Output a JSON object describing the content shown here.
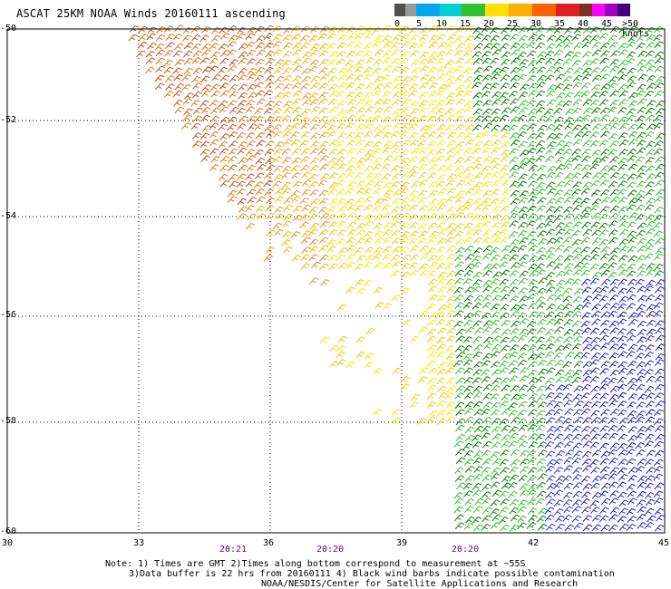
{
  "title": "ASCAT 25KM NOAA Winds 20160111 ascending",
  "colorbar": {
    "labels": [
      "0",
      "5",
      "10",
      "15",
      "20",
      "25",
      "30",
      "35",
      "40",
      "45",
      ">50 knots"
    ],
    "colors": [
      "#505050",
      "#9a9a9a",
      "#00a8f0",
      "#00d0d0",
      "#30c030",
      "#ffe000",
      "#ffb000",
      "#ff6000",
      "#e02020",
      "#803020",
      "#ff00ff",
      "#a000c0",
      "#400080"
    ]
  },
  "axes": {
    "lat_labels": [
      "-50",
      "-52",
      "-54",
      "-56",
      "-58",
      "-60"
    ],
    "lon_labels": [
      "30",
      "33",
      "36",
      "39",
      "42",
      "45"
    ],
    "time_labels": [
      "20:21",
      "20:20",
      "20:20"
    ]
  },
  "notes": {
    "line1": "Note: 1) Times are GMT 2)Times along bottom correspond to measurement at ~55S",
    "line2": "3)Data buffer is 22 hrs from 20160111 4) Black wind barbs indicate possible contamination",
    "line3": "NOAA/NESDIS/Center for Satellite Applications and Research"
  }
}
